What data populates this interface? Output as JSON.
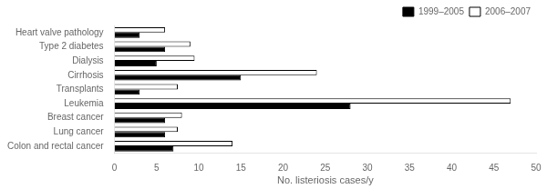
{
  "chart_data": {
    "type": "bar",
    "orientation": "horizontal",
    "categories": [
      "Heart valve pathology",
      "Type 2 diabetes",
      "Dialysis",
      "Cirrhosis",
      "Transplants",
      "Leukemia",
      "Breast cancer",
      "Lung cancer",
      "Colon and rectal cancer"
    ],
    "series": [
      {
        "name": "2006–2007",
        "color": "#ffffff",
        "values": [
          6,
          9,
          9.5,
          24,
          7.5,
          47,
          8,
          7.5,
          14
        ]
      },
      {
        "name": "1999–2005",
        "color": "#000000",
        "values": [
          3,
          6,
          5,
          15,
          3,
          28,
          6,
          6,
          7
        ]
      }
    ],
    "xlabel": "No. listeriosis cases/y",
    "xlim": [
      0,
      50
    ],
    "xticks": [
      0,
      5,
      10,
      15,
      20,
      25,
      30,
      35,
      40,
      45,
      50
    ],
    "grid": false,
    "legend": "upper right"
  }
}
